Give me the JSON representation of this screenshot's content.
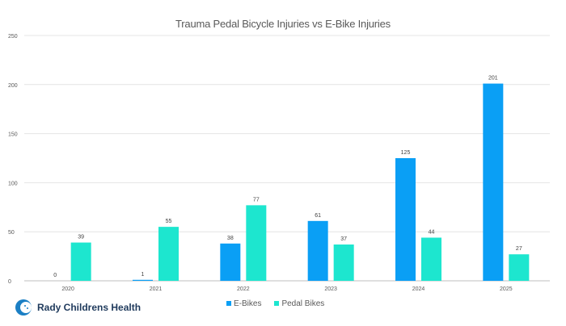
{
  "chart_data": {
    "type": "bar",
    "title": "Trauma Pedal Bicycle Injuries vs E-Bike Injuries",
    "xlabel": "",
    "ylabel": "",
    "ylim": [
      0,
      250
    ],
    "yticks": [
      0,
      50,
      100,
      150,
      200,
      250
    ],
    "grid": true,
    "legend_position": "bottom",
    "categories": [
      "2020",
      "2021",
      "2022",
      "2023",
      "2024",
      "2025"
    ],
    "series": [
      {
        "name": "E-Bikes",
        "color": "#0a9ff5",
        "values": [
          0,
          1,
          38,
          61,
          125,
          201
        ]
      },
      {
        "name": "Pedal Bikes",
        "color": "#1de6cf",
        "values": [
          39,
          55,
          77,
          37,
          44,
          27
        ]
      }
    ]
  },
  "branding": {
    "logo_text": "Rady Childrens Health"
  }
}
